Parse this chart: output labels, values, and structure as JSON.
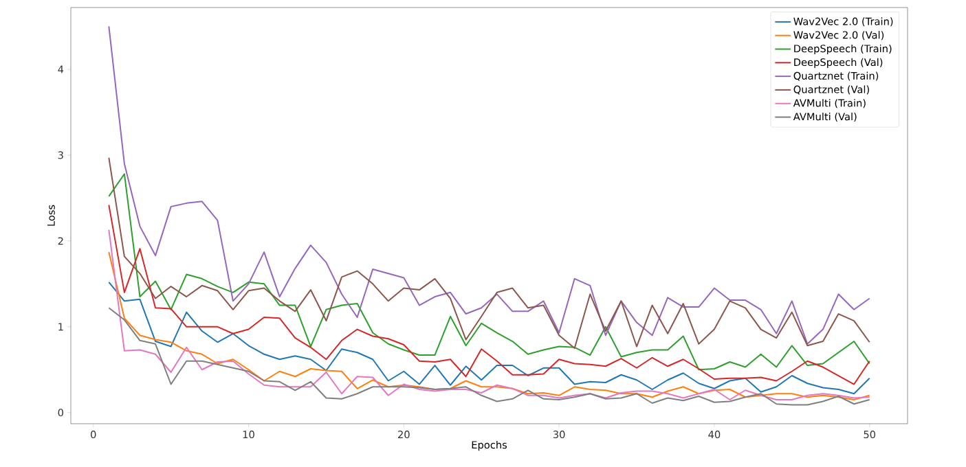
{
  "chart_data": {
    "type": "line",
    "xlabel": "Epochs",
    "ylabel": "Loss",
    "x": [
      1,
      2,
      3,
      4,
      5,
      6,
      7,
      8,
      9,
      10,
      11,
      12,
      13,
      14,
      15,
      16,
      17,
      18,
      19,
      20,
      21,
      22,
      23,
      24,
      25,
      26,
      27,
      28,
      29,
      30,
      31,
      32,
      33,
      34,
      35,
      36,
      37,
      38,
      39,
      40,
      41,
      42,
      43,
      44,
      45,
      46,
      47,
      48,
      49,
      50
    ],
    "xlim": [
      -1.45,
      52.45
    ],
    "xticks": [
      0,
      10,
      20,
      30,
      40,
      50
    ],
    "ylim": [
      -0.13,
      4.72
    ],
    "yticks": [
      0,
      1,
      2,
      3,
      4
    ],
    "grid": false,
    "legend": "top right",
    "line_style": "solid",
    "marker": "none",
    "series": [
      {
        "name": "Wav2Vec 2.0 (Train)",
        "color": "#1f77b4",
        "values": [
          1.52,
          1.3,
          1.32,
          0.83,
          0.77,
          1.17,
          0.95,
          0.82,
          0.92,
          0.78,
          0.68,
          0.62,
          0.66,
          0.62,
          0.49,
          0.74,
          0.7,
          0.62,
          0.37,
          0.48,
          0.33,
          0.55,
          0.32,
          0.54,
          0.38,
          0.55,
          0.55,
          0.43,
          0.52,
          0.52,
          0.33,
          0.36,
          0.35,
          0.44,
          0.38,
          0.27,
          0.38,
          0.46,
          0.34,
          0.28,
          0.37,
          0.4,
          0.24,
          0.3,
          0.43,
          0.34,
          0.29,
          0.27,
          0.22,
          0.4
        ]
      },
      {
        "name": "Wav2Vec 2.0 (Val)",
        "color": "#ff7f0e",
        "values": [
          1.87,
          1.1,
          0.9,
          0.85,
          0.82,
          0.72,
          0.68,
          0.57,
          0.62,
          0.5,
          0.37,
          0.48,
          0.42,
          0.51,
          0.49,
          0.48,
          0.28,
          0.38,
          0.3,
          0.32,
          0.3,
          0.27,
          0.28,
          0.37,
          0.3,
          0.3,
          0.28,
          0.22,
          0.23,
          0.2,
          0.3,
          0.27,
          0.26,
          0.22,
          0.22,
          0.18,
          0.25,
          0.3,
          0.22,
          0.26,
          0.27,
          0.18,
          0.2,
          0.22,
          0.22,
          0.18,
          0.2,
          0.18,
          0.15,
          0.2
        ]
      },
      {
        "name": "DeepSpeech (Train)",
        "color": "#2ca02c",
        "values": [
          2.52,
          2.78,
          1.35,
          1.53,
          1.2,
          1.61,
          1.56,
          1.47,
          1.4,
          1.52,
          1.5,
          1.25,
          1.25,
          0.77,
          1.2,
          1.25,
          1.27,
          0.93,
          0.8,
          0.73,
          0.67,
          0.67,
          1.12,
          0.78,
          1.04,
          0.93,
          0.83,
          0.68,
          0.73,
          0.77,
          0.76,
          0.67,
          1.0,
          0.65,
          0.7,
          0.73,
          0.73,
          0.89,
          0.5,
          0.51,
          0.59,
          0.53,
          0.68,
          0.53,
          0.78,
          0.55,
          0.57,
          0.7,
          0.83,
          0.57
        ]
      },
      {
        "name": "DeepSpeech (Val)",
        "color": "#d62728",
        "values": [
          2.42,
          1.4,
          1.91,
          1.22,
          1.21,
          1.0,
          1.0,
          1.0,
          0.92,
          0.97,
          1.11,
          1.1,
          0.87,
          0.76,
          0.62,
          0.84,
          0.97,
          0.89,
          0.86,
          0.79,
          0.6,
          0.59,
          0.62,
          0.42,
          0.74,
          0.6,
          0.44,
          0.44,
          0.45,
          0.62,
          0.57,
          0.56,
          0.54,
          0.63,
          0.52,
          0.64,
          0.54,
          0.62,
          0.51,
          0.39,
          0.4,
          0.4,
          0.41,
          0.37,
          0.48,
          0.6,
          0.53,
          0.43,
          0.33,
          0.6
        ]
      },
      {
        "name": "Quartznet (Train)",
        "color": "#9467bd",
        "values": [
          4.5,
          2.9,
          2.17,
          1.83,
          2.4,
          2.44,
          2.46,
          2.24,
          1.3,
          1.5,
          1.87,
          1.35,
          1.68,
          1.95,
          1.75,
          1.38,
          1.11,
          1.67,
          1.62,
          1.57,
          1.25,
          1.35,
          1.4,
          1.15,
          1.22,
          1.38,
          1.18,
          1.18,
          1.3,
          0.93,
          1.56,
          1.48,
          0.9,
          1.3,
          1.05,
          0.9,
          1.34,
          1.23,
          1.23,
          1.45,
          1.31,
          1.31,
          1.2,
          0.92,
          1.3,
          0.8,
          0.97,
          1.38,
          1.2,
          1.33
        ]
      },
      {
        "name": "Quartznet (Val)",
        "color": "#8c564b",
        "values": [
          2.97,
          1.82,
          1.62,
          1.33,
          1.47,
          1.35,
          1.48,
          1.42,
          1.2,
          1.42,
          1.45,
          1.3,
          1.18,
          1.43,
          1.07,
          1.58,
          1.65,
          1.5,
          1.3,
          1.45,
          1.43,
          1.56,
          1.33,
          0.85,
          1.12,
          1.4,
          1.45,
          1.22,
          1.25,
          0.9,
          0.75,
          1.38,
          0.95,
          1.3,
          0.77,
          1.25,
          0.92,
          1.27,
          0.8,
          0.97,
          1.3,
          1.22,
          0.97,
          0.87,
          1.17,
          0.78,
          0.83,
          1.15,
          1.07,
          0.82
        ]
      },
      {
        "name": "AVMulti (Train)",
        "color": "#e377c2",
        "values": [
          2.13,
          0.72,
          0.73,
          0.68,
          0.47,
          0.76,
          0.5,
          0.59,
          0.6,
          0.45,
          0.32,
          0.3,
          0.3,
          0.3,
          0.47,
          0.22,
          0.42,
          0.41,
          0.2,
          0.33,
          0.27,
          0.25,
          0.27,
          0.27,
          0.23,
          0.32,
          0.28,
          0.2,
          0.2,
          0.17,
          0.2,
          0.22,
          0.17,
          0.23,
          0.25,
          0.25,
          0.22,
          0.17,
          0.22,
          0.27,
          0.15,
          0.26,
          0.2,
          0.15,
          0.15,
          0.2,
          0.22,
          0.2,
          0.17,
          0.18
        ]
      },
      {
        "name": "AVMulti (Val)",
        "color": "#7f7f7f",
        "values": [
          1.22,
          1.08,
          0.84,
          0.8,
          0.33,
          0.6,
          0.6,
          0.56,
          0.52,
          0.48,
          0.37,
          0.36,
          0.26,
          0.36,
          0.17,
          0.16,
          0.22,
          0.3,
          0.3,
          0.3,
          0.29,
          0.27,
          0.28,
          0.3,
          0.2,
          0.13,
          0.16,
          0.26,
          0.16,
          0.15,
          0.18,
          0.22,
          0.16,
          0.17,
          0.22,
          0.11,
          0.17,
          0.14,
          0.19,
          0.12,
          0.13,
          0.18,
          0.22,
          0.1,
          0.09,
          0.09,
          0.13,
          0.19,
          0.1,
          0.15
        ]
      }
    ]
  }
}
